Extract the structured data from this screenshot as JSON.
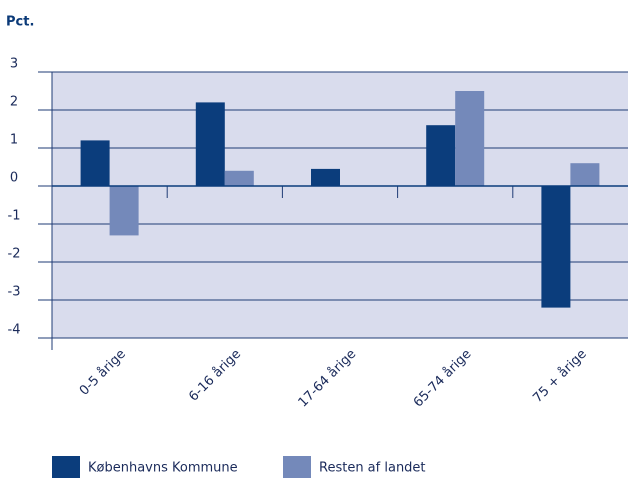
{
  "chart_data": {
    "type": "bar",
    "y_label": "Pct.",
    "categories": [
      "0-5 årige",
      "6-16 årige",
      "17-64 årige",
      "65-74 årige",
      "75 + årige"
    ],
    "series": [
      {
        "name": "Københavns Kommune",
        "color": "#0b3d7c",
        "values": [
          1.2,
          2.2,
          0.45,
          1.6,
          -3.2
        ]
      },
      {
        "name": "Resten af landet",
        "color": "#7489ba",
        "values": [
          -1.3,
          0.4,
          0,
          2.5,
          0.6
        ]
      }
    ],
    "ylim": [
      -4,
      3
    ],
    "yticks": [
      -4,
      -3,
      -2,
      -1,
      0,
      1,
      2,
      3
    ],
    "grid": true,
    "legend": "bottom"
  }
}
